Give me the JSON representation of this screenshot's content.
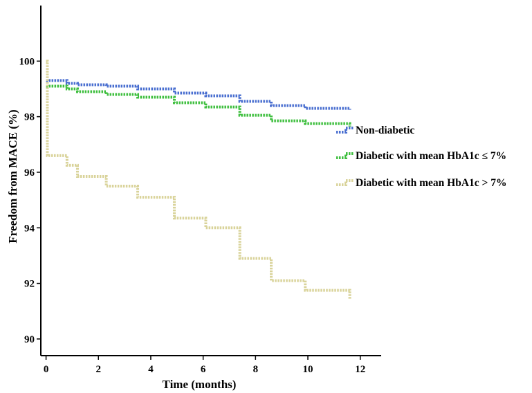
{
  "chart_data": {
    "type": "line",
    "style": "step",
    "xlabel": "Time (months)",
    "ylabel": "Freedom from MACE (%)",
    "xlim": [
      -0.2,
      12.8
    ],
    "ylim": [
      89.4,
      102.0
    ],
    "xticks": [
      0,
      2,
      4,
      6,
      8,
      10,
      12
    ],
    "yticks": [
      90,
      92,
      94,
      96,
      98,
      100
    ],
    "grid": false,
    "legend_position": "right",
    "series": [
      {
        "name": "Non-diabetic",
        "color": "#4a6fd0",
        "x": [
          0,
          0.8,
          1.2,
          2.3,
          3.5,
          4.9,
          6.1,
          7.4,
          8.6,
          9.9,
          11.6
        ],
        "y": [
          99.3,
          99.2,
          99.15,
          99.1,
          99.0,
          98.85,
          98.75,
          98.55,
          98.4,
          98.3,
          98.25
        ]
      },
      {
        "name": "Diabetic with mean HbA1c ≤ 7%",
        "color": "#3fbf3f",
        "x": [
          0,
          0.8,
          1.2,
          2.3,
          3.5,
          4.9,
          6.1,
          7.4,
          8.6,
          9.9,
          11.6
        ],
        "y": [
          99.1,
          99.0,
          98.9,
          98.8,
          98.7,
          98.5,
          98.35,
          98.05,
          97.85,
          97.75,
          97.65
        ]
      },
      {
        "name": "Diabetic with mean HbA1c > 7%",
        "color": "#d9d39a",
        "x": [
          0,
          0.05,
          0.8,
          1.2,
          2.3,
          3.5,
          4.9,
          6.1,
          7.4,
          8.6,
          9.9,
          11.6
        ],
        "y": [
          100,
          96.6,
          96.25,
          95.85,
          95.5,
          95.1,
          94.35,
          94.0,
          92.9,
          92.1,
          91.75,
          91.45
        ]
      }
    ]
  }
}
